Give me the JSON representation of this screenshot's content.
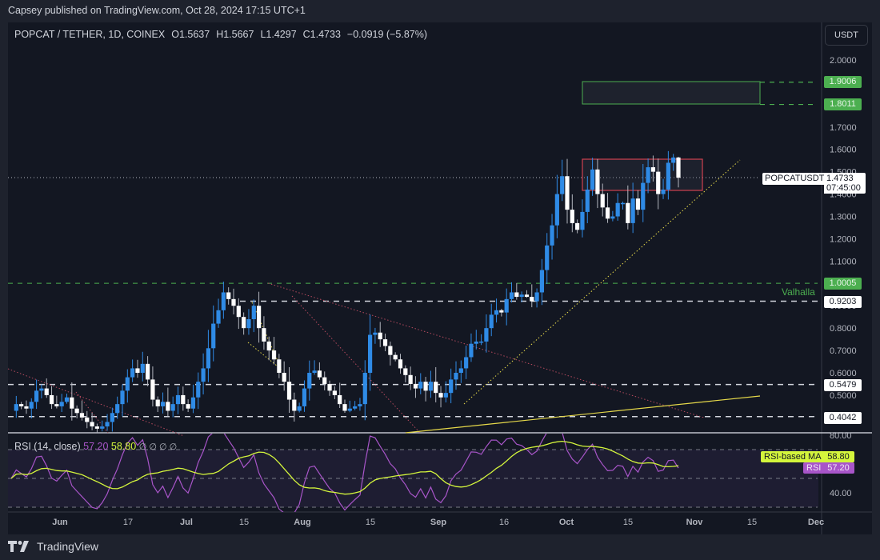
{
  "publisher_line": "Capsey published on TradingView.com, Oct 28, 2024 17:15 UTC+1",
  "legend": {
    "symbol": "POPCAT / TETHER, 1D, COINEX",
    "open": "O1.5637",
    "high": "H1.5667",
    "low": "L1.4297",
    "close": "C1.4733",
    "change": "−0.0919 (−5.87%)"
  },
  "price_axis": {
    "unit_button": "USDT",
    "ticks": [
      "2.0000",
      "1.7000",
      "1.6000",
      "1.5000",
      "1.4000",
      "1.3000",
      "1.2000",
      "1.1000",
      "0.9000",
      "0.8000",
      "0.7000",
      "0.6000",
      "0.5000"
    ],
    "labels": {
      "target_top": "1.9006",
      "target_bottom": "1.8011",
      "valhalla": "1.0005",
      "level_092": "0.9203",
      "level_054": "0.5479",
      "level_040": "0.4042"
    },
    "current": {
      "symbol": "POPCATUSDT",
      "price": "1.4733",
      "countdown": "07:45:00"
    }
  },
  "annotations": {
    "valhalla_label": "Valhalla"
  },
  "rsi": {
    "title": "RSI (14, close)",
    "rsi_value": "57.20",
    "ma_value": "58.80",
    "empty_markers": "∅ ∅ ∅ ∅",
    "ma_tag": "RSI-based MA",
    "rsi_tag": "RSI",
    "ticks": [
      "80.00",
      "40.00"
    ]
  },
  "time_axis": [
    "Jun",
    "17",
    "Jul",
    "15",
    "Aug",
    "15",
    "Sep",
    "16",
    "Oct",
    "15",
    "Nov",
    "15",
    "Dec"
  ],
  "footer": {
    "brand": "TradingView"
  },
  "colors": {
    "background": "#131722",
    "up_candle": "#2f8be6",
    "down_candle": "#ffffff",
    "green_level": "#4caf50",
    "rsi_line": "#a855c9",
    "rsi_ma_line": "#d4f53c",
    "resistance_box": "#d0404f",
    "trendline_yellow": "#e6d94a"
  },
  "chart_data": {
    "type": "candlestick",
    "title": "POPCAT / TETHER, 1D, COINEX",
    "ylabel": "USDT",
    "ylim": [
      0.38,
      2.05
    ],
    "x_ticks": [
      "Jun",
      "17",
      "Jul",
      "15",
      "Aug",
      "15",
      "Sep",
      "16",
      "Oct",
      "15",
      "Nov",
      "15",
      "Dec"
    ],
    "last_candle": {
      "open": 1.5637,
      "high": 1.5667,
      "low": 1.4297,
      "close": 1.4733,
      "change": -0.0919,
      "change_pct": -5.87
    },
    "horizontal_levels": [
      1.9006,
      1.8011,
      1.0005,
      0.9203,
      0.5479,
      0.4042
    ],
    "zones": [
      {
        "name": "target",
        "top": 1.9006,
        "bottom": 1.8011,
        "color": "#4caf50"
      },
      {
        "name": "resistance",
        "top": 1.55,
        "bottom": 1.42,
        "color": "#d0404f"
      }
    ],
    "path_closes": [
      0.43,
      0.46,
      0.45,
      0.44,
      0.47,
      0.52,
      0.53,
      0.5,
      0.46,
      0.45,
      0.47,
      0.49,
      0.44,
      0.42,
      0.4,
      0.38,
      0.36,
      0.35,
      0.36,
      0.38,
      0.42,
      0.46,
      0.52,
      0.58,
      0.62,
      0.6,
      0.64,
      0.57,
      0.48,
      0.45,
      0.47,
      0.43,
      0.46,
      0.5,
      0.46,
      0.44,
      0.49,
      0.56,
      0.62,
      0.71,
      0.82,
      0.88,
      0.96,
      0.93,
      0.9,
      0.85,
      0.8,
      0.84,
      0.9,
      0.8,
      0.74,
      0.7,
      0.66,
      0.6,
      0.56,
      0.48,
      0.43,
      0.45,
      0.53,
      0.6,
      0.61,
      0.58,
      0.55,
      0.52,
      0.5,
      0.46,
      0.43,
      0.44,
      0.45,
      0.46,
      0.6,
      0.77,
      0.78,
      0.75,
      0.72,
      0.68,
      0.66,
      0.62,
      0.59,
      0.55,
      0.53,
      0.56,
      0.52,
      0.56,
      0.51,
      0.49,
      0.51,
      0.57,
      0.6,
      0.62,
      0.67,
      0.73,
      0.74,
      0.74,
      0.8,
      0.86,
      0.88,
      0.87,
      0.93,
      0.96,
      0.94,
      0.95,
      0.94,
      0.92,
      0.96,
      1.06,
      1.17,
      1.26,
      1.4,
      1.48,
      1.33,
      1.27,
      1.24,
      1.32,
      1.42,
      1.51,
      1.4,
      1.34,
      1.29,
      1.3,
      1.36,
      1.36,
      1.27,
      1.38,
      1.33,
      1.45,
      1.52,
      1.5,
      1.4,
      1.42,
      1.54,
      1.5637,
      1.4733
    ],
    "rsi": {
      "ylim": [
        30,
        90
      ],
      "bands": [
        70,
        50,
        30
      ],
      "last_rsi": 57.2,
      "last_ma": 58.8
    }
  }
}
